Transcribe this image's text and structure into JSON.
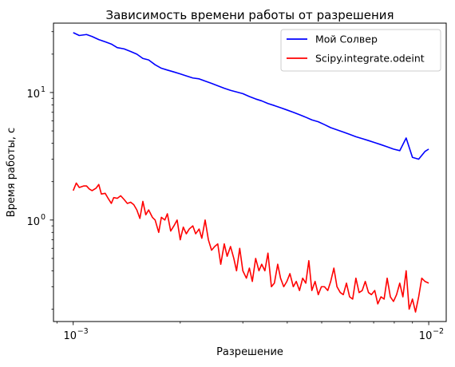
{
  "chart_data": {
    "type": "line",
    "title": "Зависимость времени работы от разрешения",
    "xlabel": "Разрешение",
    "ylabel": "Время работы, с",
    "xscale": "log",
    "yscale": "log",
    "xlim": [
      0.00088,
      0.0112
    ],
    "ylim": [
      0.16,
      35
    ],
    "grid": false,
    "legend_position": "top-right",
    "x_major_ticks": [
      {
        "value": 0.001,
        "base": "10",
        "exp": "−3"
      },
      {
        "value": 0.01,
        "base": "10",
        "exp": "−2"
      }
    ],
    "y_major_ticks": [
      {
        "value": 1,
        "base": "10",
        "exp": "0"
      },
      {
        "value": 10,
        "base": "10",
        "exp": "1"
      }
    ],
    "series": [
      {
        "name": "Мой Солвер",
        "color": "#0000ff",
        "x": [
          0.001,
          0.00104,
          0.00109,
          0.00113,
          0.00118,
          0.00123,
          0.00128,
          0.00133,
          0.00139,
          0.00145,
          0.00151,
          0.00157,
          0.00163,
          0.0017,
          0.00177,
          0.00184,
          0.00192,
          0.002,
          0.00208,
          0.00217,
          0.00226,
          0.00235,
          0.00245,
          0.00255,
          0.00266,
          0.00277,
          0.00288,
          0.003,
          0.00313,
          0.00326,
          0.00339,
          0.00353,
          0.00368,
          0.00383,
          0.00399,
          0.00416,
          0.00433,
          0.00451,
          0.00469,
          0.00489,
          0.00509,
          0.0053,
          0.00552,
          0.00575,
          0.00599,
          0.00624,
          0.0065,
          0.00677,
          0.00705,
          0.00734,
          0.00764,
          0.00796,
          0.00829,
          0.00864,
          0.009,
          0.00937,
          0.00976,
          0.01
        ],
        "y": [
          29.5,
          28.0,
          28.5,
          27.5,
          26.0,
          25.0,
          24.0,
          22.5,
          22.0,
          21.0,
          20.0,
          18.5,
          18.0,
          16.5,
          15.5,
          15.0,
          14.5,
          14.0,
          13.5,
          13.0,
          12.8,
          12.3,
          11.8,
          11.3,
          10.8,
          10.4,
          10.1,
          9.8,
          9.3,
          8.9,
          8.6,
          8.2,
          7.9,
          7.6,
          7.3,
          7.0,
          6.7,
          6.4,
          6.1,
          5.9,
          5.6,
          5.3,
          5.1,
          4.9,
          4.7,
          4.5,
          4.35,
          4.2,
          4.05,
          3.9,
          3.75,
          3.6,
          3.5,
          4.4,
          3.1,
          3.0,
          3.45,
          3.6
        ]
      },
      {
        "name": "Scipy.integrate.odeint",
        "color": "#ff0000",
        "x": [
          0.001,
          0.00102,
          0.00104,
          0.00107,
          0.00109,
          0.00111,
          0.00113,
          0.00116,
          0.00118,
          0.0012,
          0.00123,
          0.00125,
          0.00128,
          0.0013,
          0.00133,
          0.00136,
          0.00139,
          0.00142,
          0.00145,
          0.00148,
          0.00151,
          0.00154,
          0.00157,
          0.0016,
          0.00163,
          0.00167,
          0.0017,
          0.00174,
          0.00177,
          0.00181,
          0.00184,
          0.00188,
          0.00192,
          0.00196,
          0.002,
          0.00204,
          0.00208,
          0.00212,
          0.00217,
          0.00221,
          0.00226,
          0.0023,
          0.00235,
          0.0024,
          0.00245,
          0.0025,
          0.00255,
          0.0026,
          0.00266,
          0.00271,
          0.00277,
          0.00283,
          0.00288,
          0.00294,
          0.003,
          0.00307,
          0.00313,
          0.00319,
          0.00326,
          0.00333,
          0.00339,
          0.00346,
          0.00353,
          0.00361,
          0.00368,
          0.00376,
          0.00383,
          0.00391,
          0.00399,
          0.00407,
          0.00416,
          0.00424,
          0.00433,
          0.00442,
          0.00451,
          0.0046,
          0.00469,
          0.00479,
          0.00489,
          0.00499,
          0.00509,
          0.0052,
          0.0053,
          0.00541,
          0.00552,
          0.00564,
          0.00575,
          0.00587,
          0.00599,
          0.00611,
          0.00624,
          0.00637,
          0.0065,
          0.00663,
          0.00677,
          0.0069,
          0.00705,
          0.00719,
          0.00734,
          0.00749,
          0.00764,
          0.0078,
          0.00796,
          0.00812,
          0.00829,
          0.00846,
          0.00864,
          0.00881,
          0.009,
          0.00918,
          0.00937,
          0.00956,
          0.00976,
          0.01
        ],
        "y": [
          1.7,
          1.95,
          1.8,
          1.85,
          1.85,
          1.75,
          1.7,
          1.78,
          1.9,
          1.6,
          1.62,
          1.5,
          1.35,
          1.5,
          1.48,
          1.55,
          1.45,
          1.35,
          1.38,
          1.32,
          1.2,
          1.03,
          1.4,
          1.1,
          1.2,
          1.05,
          1.0,
          0.8,
          1.05,
          1.0,
          1.12,
          0.82,
          0.9,
          1.0,
          0.7,
          0.88,
          0.78,
          0.85,
          0.9,
          0.78,
          0.85,
          0.72,
          1.0,
          0.7,
          0.58,
          0.62,
          0.65,
          0.45,
          0.65,
          0.52,
          0.62,
          0.5,
          0.4,
          0.6,
          0.4,
          0.35,
          0.42,
          0.33,
          0.5,
          0.4,
          0.45,
          0.4,
          0.55,
          0.3,
          0.32,
          0.45,
          0.35,
          0.3,
          0.33,
          0.38,
          0.3,
          0.33,
          0.28,
          0.35,
          0.32,
          0.48,
          0.28,
          0.33,
          0.26,
          0.3,
          0.3,
          0.28,
          0.33,
          0.42,
          0.3,
          0.27,
          0.26,
          0.32,
          0.25,
          0.24,
          0.35,
          0.27,
          0.28,
          0.33,
          0.27,
          0.26,
          0.28,
          0.22,
          0.25,
          0.24,
          0.35,
          0.25,
          0.23,
          0.26,
          0.32,
          0.25,
          0.4,
          0.2,
          0.24,
          0.19,
          0.25,
          0.35,
          0.33,
          0.32
        ]
      }
    ]
  }
}
